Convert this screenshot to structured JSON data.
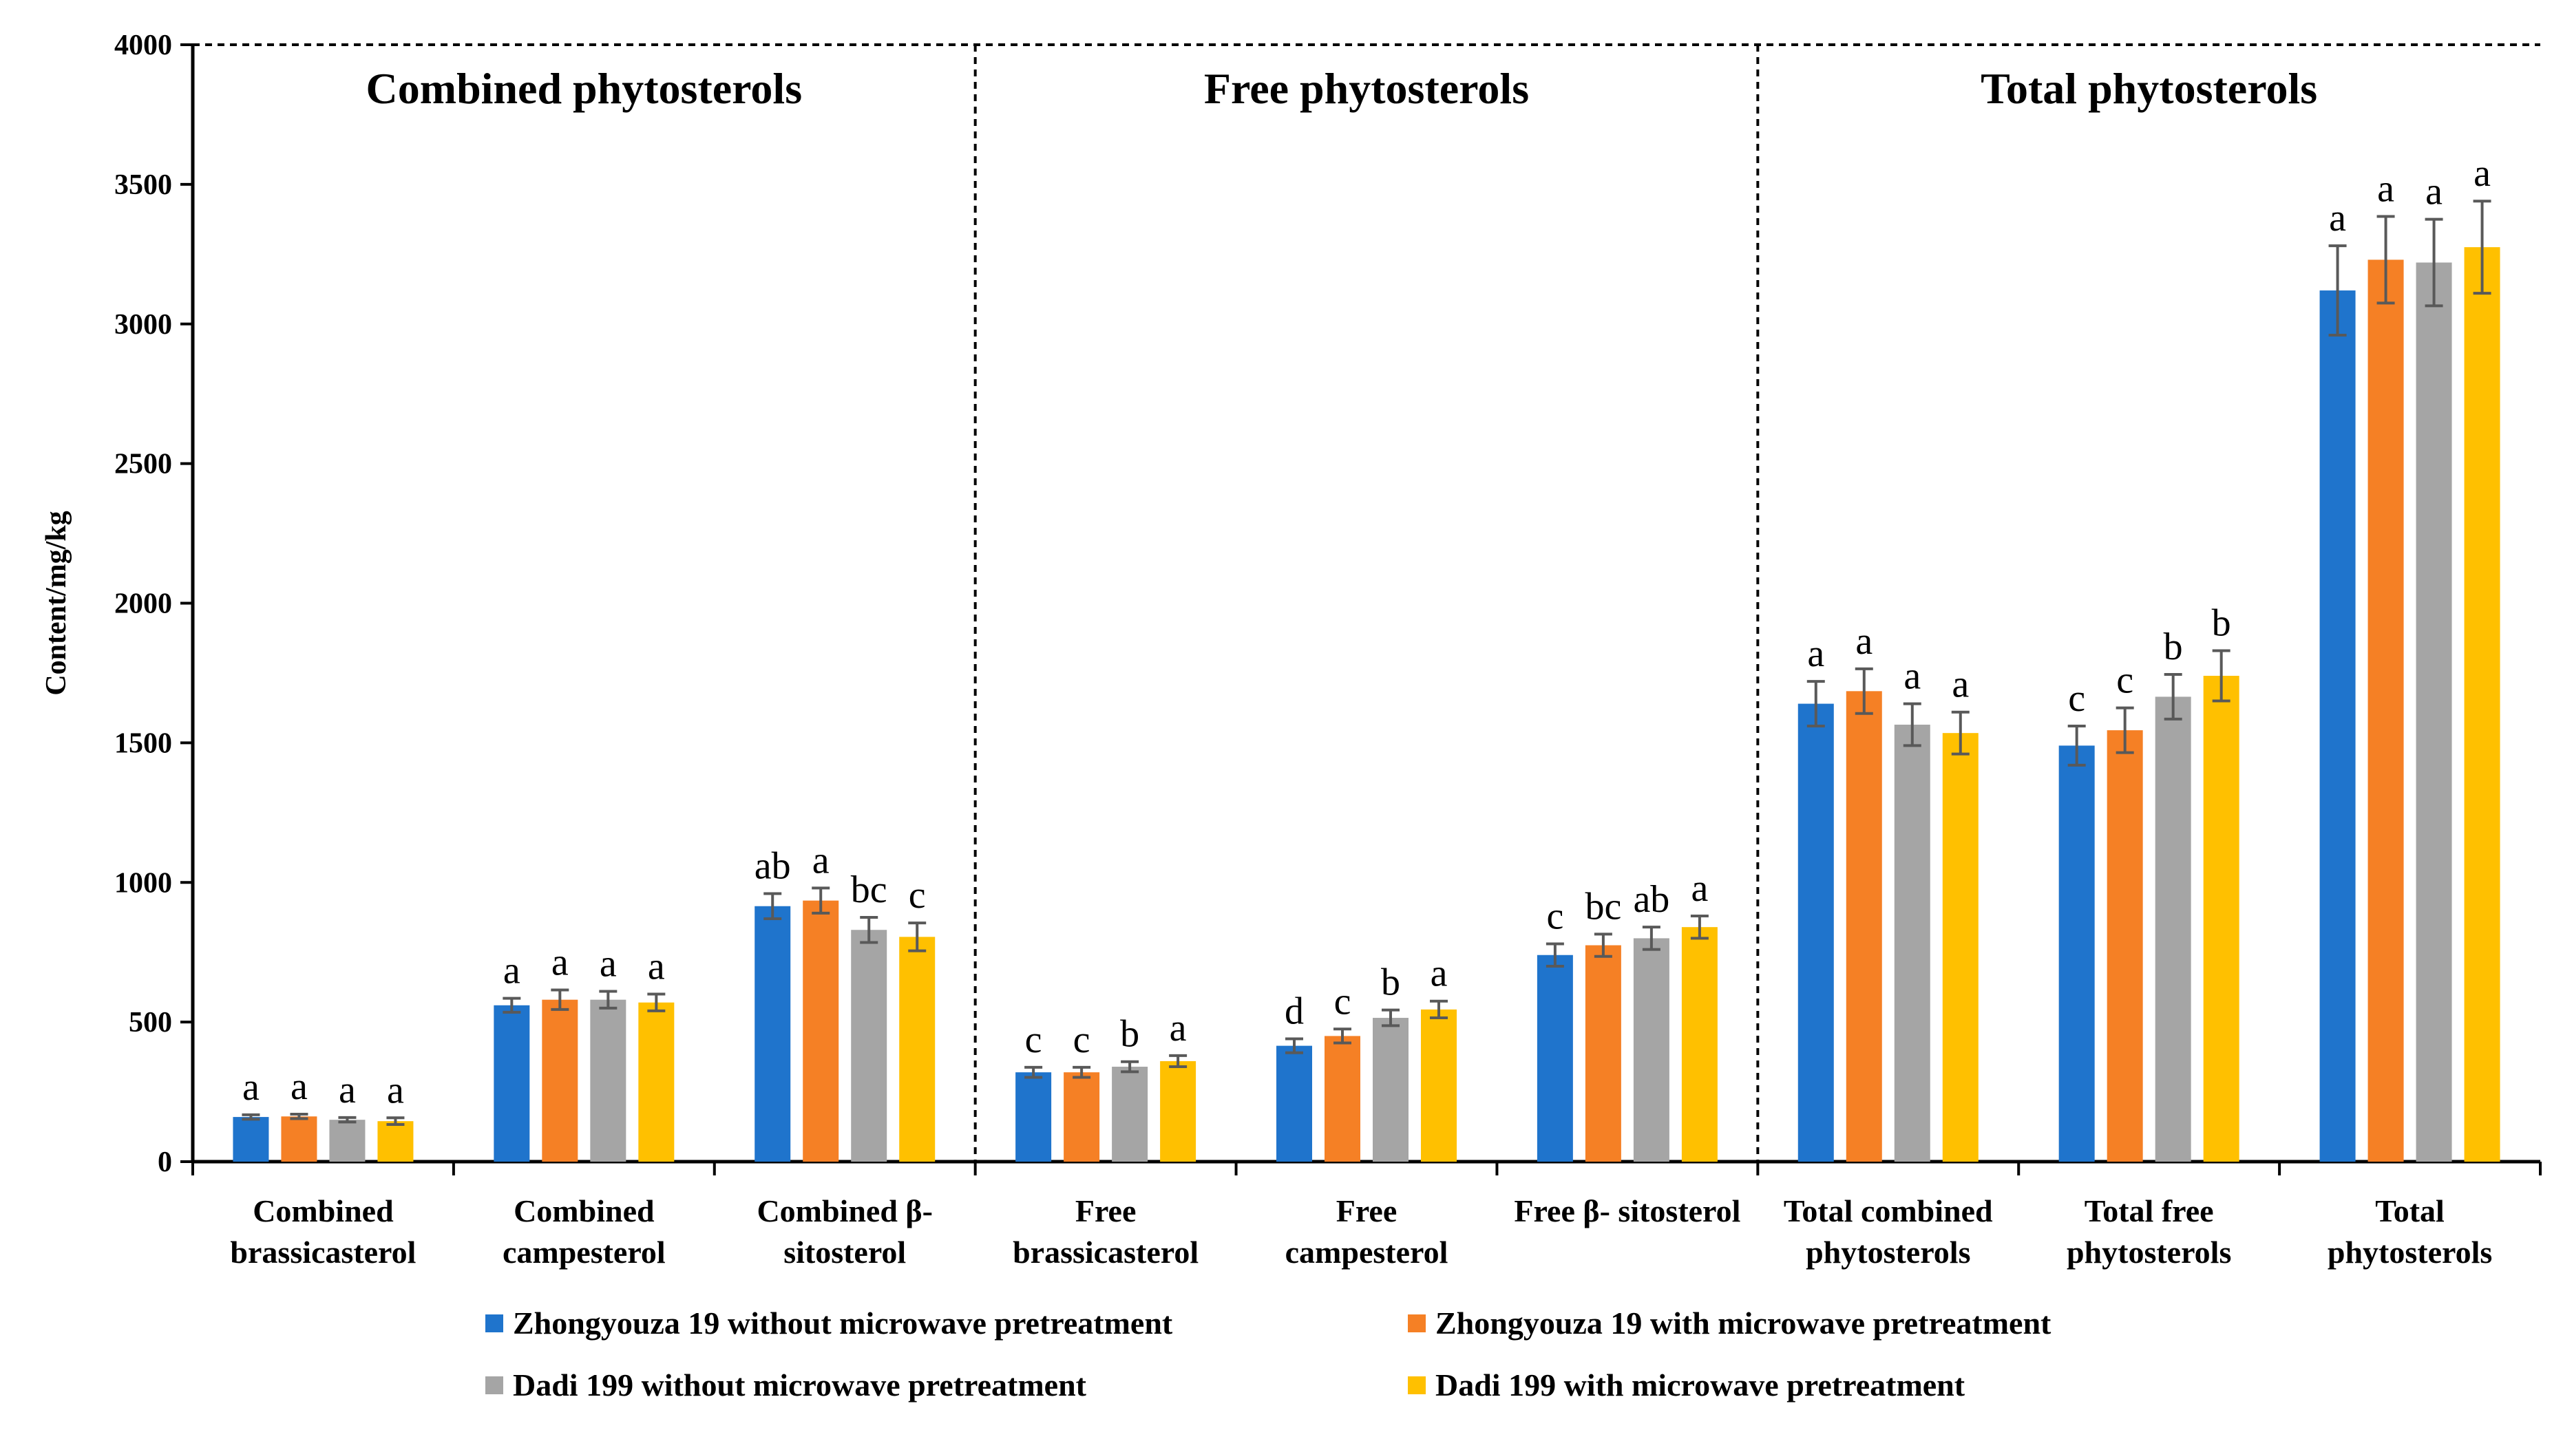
{
  "chart_data": {
    "type": "bar",
    "title": "",
    "xlabel": "",
    "ylabel": "Content/mg/kg",
    "ylim": [
      0,
      4000
    ],
    "yticks": [
      0,
      500,
      1000,
      1500,
      2000,
      2500,
      3000,
      3500,
      4000
    ],
    "grid": false,
    "legend_position": "bottom",
    "panels": [
      {
        "label": "Combined phytosterols",
        "categories": [
          0,
          1,
          2
        ]
      },
      {
        "label": "Free phytosterols",
        "categories": [
          3,
          4,
          5
        ]
      },
      {
        "label": "Total phytosterols",
        "categories": [
          6,
          7,
          8
        ]
      }
    ],
    "categories": [
      "Combined brassicasterol",
      "Combined campesterol",
      "Combined β-sitosterol",
      "Free brassicasterol",
      "Free campesterol",
      "Free β- sitosterol",
      "Total combined phytosterols",
      "Total free phytosterols",
      "Total phytosterols"
    ],
    "category_label_lines": [
      [
        "Combined",
        "brassicasterol"
      ],
      [
        "Combined",
        "campesterol"
      ],
      [
        "Combined β-",
        "sitosterol"
      ],
      [
        "Free",
        "brassicasterol"
      ],
      [
        "Free",
        "campesterol"
      ],
      [
        "Free β- sitosterol"
      ],
      [
        "Total combined",
        "phytosterols"
      ],
      [
        "Total free",
        "phytosterols"
      ],
      [
        "Total",
        "phytosterols"
      ]
    ],
    "series": [
      {
        "name": "Zhongyouza 19 without microwave pretreatment",
        "color": "#1F74CC",
        "values": [
          160,
          560,
          915,
          320,
          415,
          740,
          1640,
          1490,
          3120
        ],
        "errors": [
          8,
          25,
          45,
          18,
          25,
          40,
          80,
          70,
          160
        ],
        "letters": [
          "a",
          "a",
          "ab",
          "c",
          "d",
          "c",
          "a",
          "c",
          "a"
        ]
      },
      {
        "name": "Zhongyouza 19 with microwave pretreatment",
        "color": "#F58025",
        "values": [
          162,
          580,
          935,
          320,
          450,
          775,
          1685,
          1545,
          3230
        ],
        "errors": [
          8,
          35,
          45,
          18,
          25,
          40,
          80,
          80,
          155
        ],
        "letters": [
          "a",
          "a",
          "a",
          "c",
          "c",
          "bc",
          "a",
          "c",
          "a"
        ]
      },
      {
        "name": "Dadi 199 without microwave pretreatment",
        "color": "#A5A5A5",
        "values": [
          150,
          580,
          830,
          340,
          515,
          800,
          1565,
          1665,
          3220
        ],
        "errors": [
          8,
          30,
          45,
          18,
          28,
          40,
          75,
          80,
          155
        ],
        "letters": [
          "a",
          "a",
          "bc",
          "b",
          "b",
          "ab",
          "a",
          "b",
          "a"
        ]
      },
      {
        "name": "Dadi 199 with microwave pretreatment",
        "color": "#FFC000",
        "values": [
          145,
          570,
          805,
          360,
          545,
          840,
          1535,
          1740,
          3275
        ],
        "errors": [
          12,
          30,
          50,
          20,
          30,
          40,
          75,
          90,
          165
        ],
        "letters": [
          "a",
          "a",
          "c",
          "a",
          "a",
          "a",
          "a",
          "b",
          "a"
        ]
      }
    ]
  }
}
